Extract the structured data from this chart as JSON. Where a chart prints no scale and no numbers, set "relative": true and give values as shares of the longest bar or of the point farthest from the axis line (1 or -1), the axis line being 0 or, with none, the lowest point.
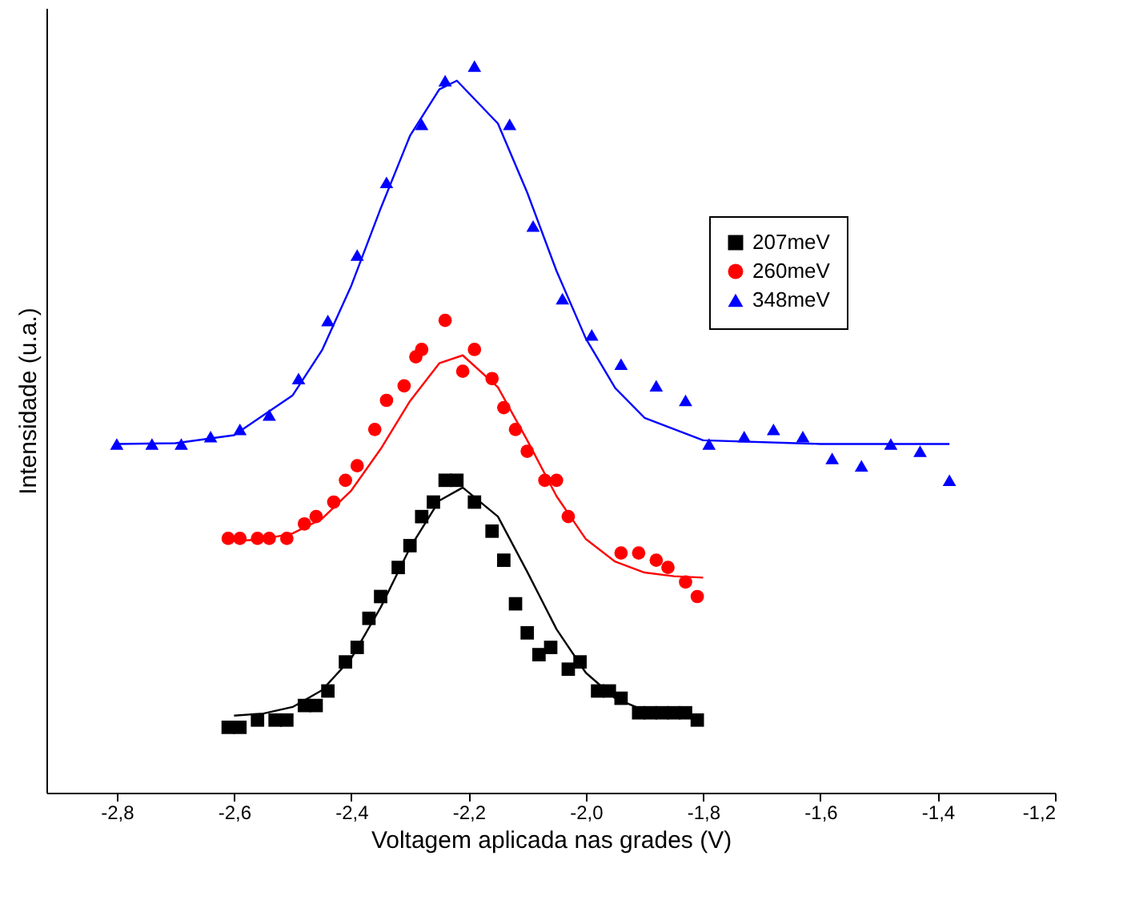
{
  "chart_data": {
    "type": "scatter",
    "xlabel": "Voltagem aplicada nas grades (V)",
    "ylabel": "Intensidade (u.a.)",
    "relative": true,
    "xlim": [
      -2.92,
      -1.2
    ],
    "xticks": [
      {
        "value": -2.8,
        "label": "-2,8"
      },
      {
        "value": -2.6,
        "label": "-2,6"
      },
      {
        "value": -2.4,
        "label": "-2,4"
      },
      {
        "value": -2.2,
        "label": "-2,2"
      },
      {
        "value": -2.0,
        "label": "-2,0"
      },
      {
        "value": -1.8,
        "label": "-1,8"
      },
      {
        "value": -1.6,
        "label": "-1,6"
      },
      {
        "value": -1.4,
        "label": "-1,4"
      },
      {
        "value": -1.2,
        "label": "-1,2"
      }
    ],
    "legend": "top right",
    "grid": false,
    "series": [
      {
        "name": "207meV",
        "marker": "square",
        "color": "#000000",
        "x": [
          -2.61,
          -2.59,
          -2.56,
          -2.53,
          -2.51,
          -2.48,
          -2.46,
          -2.44,
          -2.41,
          -2.39,
          -2.37,
          -2.35,
          -2.32,
          -2.3,
          -2.28,
          -2.26,
          -2.24,
          -2.22,
          -2.19,
          -2.16,
          -2.14,
          -2.12,
          -2.1,
          -2.08,
          -2.06,
          -2.03,
          -2.01,
          -1.98,
          -1.96,
          -1.94,
          -1.91,
          -1.89,
          -1.87,
          -1.85,
          -1.83,
          -1.81
        ],
        "values": [
          0.09,
          0.09,
          0.1,
          0.1,
          0.1,
          0.12,
          0.12,
          0.14,
          0.18,
          0.2,
          0.24,
          0.27,
          0.31,
          0.34,
          0.38,
          0.4,
          0.43,
          0.43,
          0.4,
          0.36,
          0.32,
          0.26,
          0.22,
          0.19,
          0.2,
          0.17,
          0.18,
          0.14,
          0.14,
          0.13,
          0.11,
          0.11,
          0.11,
          0.11,
          0.11,
          0.1
        ]
      },
      {
        "name": "260meV",
        "marker": "circle",
        "color": "#ff0000",
        "x": [
          -2.61,
          -2.59,
          -2.56,
          -2.54,
          -2.51,
          -2.48,
          -2.46,
          -2.43,
          -2.41,
          -2.39,
          -2.36,
          -2.34,
          -2.31,
          -2.29,
          -2.28,
          -2.24,
          -2.21,
          -2.19,
          -2.16,
          -2.14,
          -2.12,
          -2.1,
          -2.07,
          -2.05,
          -2.03,
          -1.94,
          -1.91,
          -1.88,
          -1.86,
          -1.83,
          -1.81
        ],
        "values": [
          0.35,
          0.35,
          0.35,
          0.35,
          0.35,
          0.37,
          0.38,
          0.4,
          0.43,
          0.45,
          0.5,
          0.54,
          0.56,
          0.6,
          0.61,
          0.65,
          0.58,
          0.61,
          0.57,
          0.53,
          0.5,
          0.47,
          0.43,
          0.43,
          0.38,
          0.33,
          0.33,
          0.32,
          0.31,
          0.29,
          0.27
        ]
      },
      {
        "name": "348meV",
        "marker": "triangle",
        "color": "#0000ff",
        "x": [
          -2.8,
          -2.74,
          -2.69,
          -2.64,
          -2.59,
          -2.54,
          -2.49,
          -2.44,
          -2.39,
          -2.34,
          -2.28,
          -2.24,
          -2.19,
          -2.13,
          -2.09,
          -2.04,
          -1.99,
          -1.94,
          -1.88,
          -1.83,
          -1.79,
          -1.73,
          -1.68,
          -1.63,
          -1.58,
          -1.53,
          -1.48,
          -1.43,
          -1.38
        ],
        "values": [
          0.48,
          0.48,
          0.48,
          0.49,
          0.5,
          0.52,
          0.57,
          0.65,
          0.74,
          0.84,
          0.92,
          0.98,
          1.0,
          0.92,
          0.78,
          0.68,
          0.63,
          0.59,
          0.56,
          0.54,
          0.48,
          0.49,
          0.5,
          0.49,
          0.46,
          0.45,
          0.48,
          0.47,
          0.43
        ]
      },
      {
        "type": "line",
        "color": "#000000",
        "x": [
          -2.6,
          -2.55,
          -2.5,
          -2.45,
          -2.4,
          -2.35,
          -2.3,
          -2.25,
          -2.21,
          -2.15,
          -2.1,
          -2.05,
          -2.0,
          -1.95,
          -1.9,
          -1.85,
          -1.8
        ],
        "values": [
          0.106,
          0.109,
          0.118,
          0.141,
          0.185,
          0.255,
          0.337,
          0.402,
          0.42,
          0.38,
          0.304,
          0.225,
          0.165,
          0.13,
          0.113,
          0.107,
          0.105
        ]
      },
      {
        "type": "line",
        "color": "#ff0000",
        "x": [
          -2.6,
          -2.55,
          -2.5,
          -2.45,
          -2.4,
          -2.35,
          -2.3,
          -2.25,
          -2.21,
          -2.15,
          -2.1,
          -2.05,
          -2.0,
          -1.95,
          -1.9,
          -1.85,
          -1.8
        ],
        "values": [
          0.346,
          0.349,
          0.357,
          0.377,
          0.416,
          0.473,
          0.539,
          0.591,
          0.602,
          0.558,
          0.485,
          0.408,
          0.349,
          0.318,
          0.303,
          0.298,
          0.296
        ]
      },
      {
        "type": "line",
        "color": "#0000ff",
        "x": [
          -2.8,
          -2.7,
          -2.6,
          -2.5,
          -2.45,
          -2.4,
          -2.35,
          -2.3,
          -2.25,
          -2.22,
          -2.15,
          -2.1,
          -2.05,
          -2.0,
          -1.95,
          -1.9,
          -1.8,
          -1.6,
          -1.38
        ],
        "values": [
          0.48,
          0.481,
          0.492,
          0.547,
          0.609,
          0.698,
          0.804,
          0.904,
          0.968,
          0.98,
          0.921,
          0.826,
          0.718,
          0.625,
          0.557,
          0.516,
          0.485,
          0.48,
          0.48
        ]
      }
    ]
  }
}
